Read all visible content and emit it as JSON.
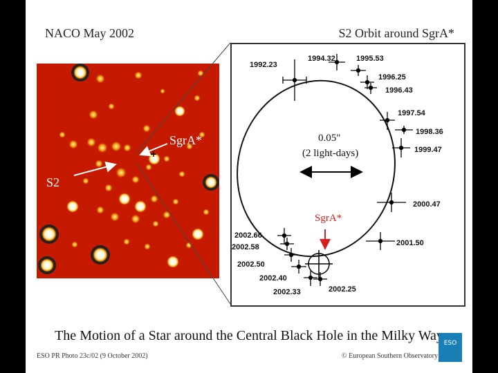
{
  "header": {
    "left_title": "NACO May 2002",
    "right_title": "S2 Orbit around SgrA*"
  },
  "image_labels": {
    "sgra": "SgrA*",
    "s2": "S2",
    "center_mark": "+"
  },
  "orbit": {
    "scale_value": "0.05\"",
    "scale_note": "(2 light-days)",
    "sgra_label": "SgrA*",
    "epochs": [
      "1992.23",
      "1994.32",
      "1995.53",
      "1996.25",
      "1996.43",
      "1997.54",
      "1998.36",
      "1999.47",
      "2000.47",
      "2001.50",
      "2002.66",
      "2002.58",
      "2002.50",
      "2002.40",
      "2002.33",
      "2002.25"
    ]
  },
  "caption": "The Motion of a Star around the Central Black Hole in the Milky Way",
  "footer": {
    "left": "ESO PR Photo 23c/02 (9 October 2002)",
    "right": "© European Southern Observatory",
    "logo": "ESO"
  },
  "colors": {
    "field_background": "#c51a00",
    "sgra_arrow": "#d42020",
    "logo": "#1a7fb5"
  }
}
